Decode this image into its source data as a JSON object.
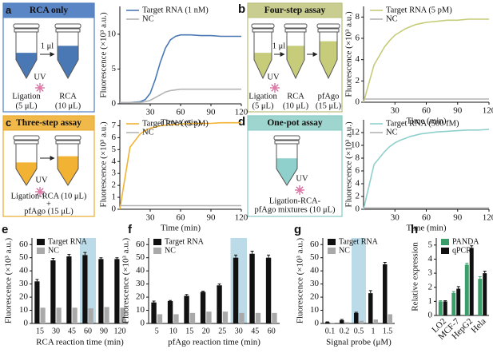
{
  "diagrams": [
    {
      "label": "a",
      "title": "RCA only",
      "texts": [
        "1 μl",
        "UV",
        "Ligation",
        "(5 μL)",
        "RCA",
        "(10 μL)"
      ]
    },
    {
      "label": "b",
      "title": "Four-step assay",
      "texts": [
        "1 μl",
        "UV",
        "Ligation",
        "(5 μL)",
        "RCA",
        "(10 μL)",
        "pfAgo",
        "(15 μL)"
      ]
    },
    {
      "label": "c",
      "title": "Three-step assay",
      "texts": [
        "UV",
        "Ligation-RCA (10 μL)",
        "+",
        "pfAgo (15 μL)"
      ]
    },
    {
      "label": "d",
      "title": "One-pot assay",
      "texts": [
        "UV",
        "Ligation-RCA-",
        "pfAgo mixtures (10 μL)"
      ]
    }
  ],
  "chart_data": [
    {
      "type": "line",
      "x_label": "Time (min)",
      "y_label": "Fluorescence (×10³ a.u.)",
      "x": [
        0,
        10,
        20,
        25,
        30,
        35,
        40,
        45,
        50,
        55,
        60,
        70,
        80,
        90,
        100,
        110,
        120
      ],
      "xlim": [
        0,
        120
      ],
      "xticks": [
        30,
        60,
        90,
        120
      ],
      "ylim": [
        0,
        14
      ],
      "yticks": [
        0,
        5,
        10
      ],
      "series": [
        {
          "name": "Target RNA (1 nM)",
          "color": "#4a78b5",
          "values": [
            0.2,
            0.2,
            0.3,
            0.6,
            1.5,
            3.5,
            6,
            8,
            9.2,
            9.7,
            9.9,
            9.9,
            9.8,
            9.8,
            9.7,
            9.7,
            9.7
          ]
        },
        {
          "name": "NC",
          "color": "#b4b4b4",
          "values": [
            0.2,
            0.2,
            0.2,
            0.3,
            0.5,
            0.9,
            1.3,
            1.7,
            1.9,
            2,
            2.1,
            2.1,
            2.1,
            2.1,
            2.1,
            2.1,
            2.1
          ]
        }
      ]
    },
    {
      "type": "line",
      "x_label": "Time (min)",
      "y_label": "Fluorescence (×10³ a.u.)",
      "x": [
        0,
        10,
        20,
        25,
        30,
        35,
        40,
        45,
        50,
        55,
        60,
        70,
        80,
        90,
        100,
        110,
        120
      ],
      "xlim": [
        0,
        120
      ],
      "xticks": [
        30,
        60,
        90,
        120
      ],
      "ylim": [
        0,
        9
      ],
      "yticks": [
        0,
        2,
        4,
        6,
        8
      ],
      "series": [
        {
          "name": "Target RNA (5 pM)",
          "color": "#c6cc7a",
          "values": [
            0,
            3.5,
            5.2,
            5.8,
            6.3,
            6.6,
            6.9,
            7.1,
            7.3,
            7.4,
            7.5,
            7.6,
            7.7,
            7.7,
            7.8,
            7.8,
            7.8
          ]
        },
        {
          "name": "NC",
          "color": "#b4b4b4",
          "values": [
            0.3,
            0.3,
            0.3,
            0.3,
            0.3,
            0.3,
            0.3,
            0.3,
            0.3,
            0.3,
            0.3,
            0.3,
            0.3,
            0.3,
            0.3,
            0.3,
            0.3
          ]
        }
      ]
    },
    {
      "type": "line",
      "x_label": "Time (min)",
      "y_label": "Fluorescence (×10³ a.u.)",
      "x": [
        0,
        10,
        20,
        25,
        30,
        35,
        40,
        45,
        50,
        55,
        60,
        70,
        80,
        90,
        100,
        110,
        120
      ],
      "xlim": [
        0,
        120
      ],
      "xticks": [
        30,
        60,
        90,
        120
      ],
      "ylim": [
        0,
        7.5
      ],
      "yticks": [
        0,
        1,
        2,
        3,
        4,
        5,
        6,
        7
      ],
      "series": [
        {
          "name": "Target RNA (5 pM)",
          "color": "#f2b233",
          "values": [
            0,
            5.2,
            6.3,
            6.6,
            6.8,
            6.9,
            7,
            7.05,
            7.1,
            7.1,
            7.15,
            7.2,
            7.2,
            7.2,
            7.25,
            7.25,
            7.25
          ]
        },
        {
          "name": "NC",
          "color": "#b4b4b4",
          "values": [
            0.3,
            0.3,
            0.3,
            0.3,
            0.3,
            0.3,
            0.3,
            0.3,
            0.3,
            0.3,
            0.3,
            0.3,
            0.3,
            0.3,
            0.3,
            0.3,
            0.3
          ]
        }
      ]
    },
    {
      "type": "line",
      "x_label": "Time (min)",
      "y_label": "Fluorescence (×10³ a.u.)",
      "x": [
        0,
        10,
        20,
        25,
        30,
        35,
        40,
        45,
        50,
        55,
        60,
        70,
        80,
        90,
        100,
        110,
        120
      ],
      "xlim": [
        0,
        120
      ],
      "xticks": [
        30,
        60,
        90,
        120
      ],
      "ylim": [
        0,
        14
      ],
      "yticks": [
        0,
        2,
        4,
        6,
        8,
        10,
        12
      ],
      "series": [
        {
          "name": "Target RNA (500 fM)",
          "color": "#8fd0cc",
          "values": [
            0,
            7,
            9,
            9.8,
            10.4,
            10.8,
            11.1,
            11.4,
            11.6,
            11.8,
            11.9,
            12.1,
            12.2,
            12.3,
            12.4,
            12.4,
            12.5
          ]
        },
        {
          "name": "NC",
          "color": "#b4b4b4",
          "values": [
            0.2,
            0.2,
            0.2,
            0.2,
            0.2,
            0.2,
            0.2,
            0.2,
            0.2,
            0.2,
            0.2,
            0.2,
            0.2,
            0.2,
            0.2,
            0.2,
            0.2
          ]
        }
      ]
    },
    {
      "type": "bar",
      "label": "e",
      "x_label": "RCA reaction time (min)",
      "y_label": "Fluorescence (×10³ a.u.)",
      "categories": [
        "15",
        "30",
        "45",
        "60",
        "90",
        "120"
      ],
      "highlight": "60",
      "ylim": [
        0,
        65
      ],
      "yticks": [
        0,
        10,
        20,
        30,
        40,
        50,
        60
      ],
      "series": [
        {
          "name": "Target RNA",
          "color": "#111111",
          "values": [
            32,
            48,
            51,
            52,
            49,
            49
          ],
          "errors": [
            1.5,
            1.5,
            1.5,
            2,
            1,
            1
          ]
        },
        {
          "name": "NC",
          "color": "#a9a9a9",
          "values": [
            12,
            12,
            12,
            11.5,
            12.5,
            12
          ]
        }
      ]
    },
    {
      "type": "bar",
      "label": "f",
      "x_label": "pfAgo reaction time (min)",
      "y_label": "Fluorescence (×10³ a.u.)",
      "categories": [
        "5",
        "10",
        "15",
        "20",
        "25",
        "30",
        "45",
        "60"
      ],
      "highlight": "30",
      "ylim": [
        0,
        65
      ],
      "yticks": [
        0,
        10,
        20,
        30,
        40,
        50,
        60
      ],
      "series": [
        {
          "name": "Target RNA",
          "color": "#111111",
          "values": [
            16,
            17,
            21,
            24,
            29,
            50,
            53,
            50
          ],
          "errors": [
            1,
            0.5,
            1,
            0.5,
            1,
            2,
            2,
            2
          ]
        },
        {
          "name": "NC",
          "color": "#a9a9a9",
          "values": [
            7,
            7,
            8,
            9,
            9,
            8,
            8,
            8
          ]
        }
      ]
    },
    {
      "type": "bar",
      "label": "g",
      "x_label": "Signal probe (μM)",
      "y_label": "Fluorescence (×10³ a.u.)",
      "categories": [
        "0.1",
        "0.2",
        "0.5",
        "1",
        "1.5"
      ],
      "highlight": "0.5",
      "ylim": [
        0,
        65
      ],
      "yticks": [
        0,
        10,
        20,
        30,
        40,
        50,
        60
      ],
      "series": [
        {
          "name": "Target RNA",
          "color": "#111111",
          "values": [
            1,
            2.5,
            8,
            23,
            45
          ],
          "errors": [
            0.2,
            0.5,
            0.5,
            2,
            1.5
          ]
        },
        {
          "name": "NC",
          "color": "#a9a9a9",
          "values": [
            0.5,
            1,
            2,
            3,
            7
          ]
        }
      ]
    },
    {
      "type": "bar",
      "label": "h",
      "y_label": "Relative expression",
      "rotate_labels": true,
      "categories": [
        "LO2",
        "MCF-7",
        "HepG2",
        "Hela"
      ],
      "ylim": [
        0,
        5.5
      ],
      "yticks": [
        0,
        1,
        2,
        3,
        4,
        5
      ],
      "series": [
        {
          "name": "PANDA",
          "color": "#3a9e6a",
          "values": [
            1,
            1.6,
            3.6,
            2.6
          ],
          "errors": [
            0.05,
            0.1,
            0.1,
            0.15
          ]
        },
        {
          "name": "qPCR",
          "color": "#111111",
          "values": [
            1,
            1.9,
            4.8,
            3
          ],
          "errors": [
            0.05,
            0.15,
            0.15,
            0.15
          ]
        }
      ]
    }
  ]
}
